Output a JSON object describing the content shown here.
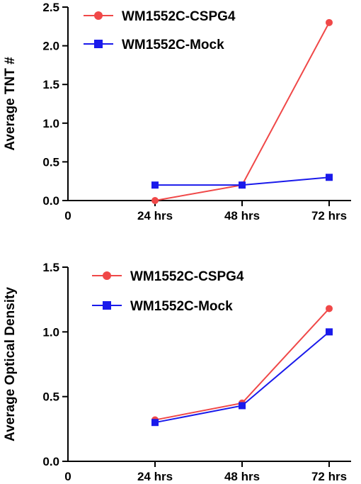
{
  "chart_data": [
    {
      "type": "line",
      "title": "",
      "xlabel": "",
      "ylabel": "Average TNT #",
      "x_categories": [
        "0",
        "24 hrs",
        "48 hrs",
        "72 hrs"
      ],
      "ylim": [
        0,
        2.5
      ],
      "yticks": [
        "0.0",
        "0.5",
        "1.0",
        "1.5",
        "2.0",
        "2.5"
      ],
      "ytick_values": [
        0,
        0.5,
        1,
        1.5,
        2,
        2.5
      ],
      "grid": false,
      "legend_position": "top-left",
      "series": [
        {
          "name": "WM1552C-CSPG4",
          "color": "#f04848",
          "marker": "circle",
          "x": [
            "24 hrs",
            "48 hrs",
            "72 hrs"
          ],
          "values": [
            0.0,
            0.2,
            2.3
          ]
        },
        {
          "name": "WM1552C-Mock",
          "color": "#1a1aeb",
          "marker": "square",
          "x": [
            "24 hrs",
            "48 hrs",
            "72 hrs"
          ],
          "values": [
            0.2,
            0.2,
            0.3
          ]
        }
      ]
    },
    {
      "type": "line",
      "title": "",
      "xlabel": "",
      "ylabel": "Average Optical Density",
      "x_categories": [
        "0",
        "24 hrs",
        "48 hrs",
        "72 hrs"
      ],
      "ylim": [
        0,
        1.5
      ],
      "yticks": [
        "0.0",
        "0.5",
        "1.0",
        "1.5"
      ],
      "ytick_values": [
        0,
        0.5,
        1,
        1.5
      ],
      "grid": false,
      "legend_position": "top-left",
      "series": [
        {
          "name": "WM1552C-CSPG4",
          "color": "#f04848",
          "marker": "circle",
          "x": [
            "24 hrs",
            "48 hrs",
            "72 hrs"
          ],
          "values": [
            0.32,
            0.45,
            1.18
          ]
        },
        {
          "name": "WM1552C-Mock",
          "color": "#1a1aeb",
          "marker": "square",
          "x": [
            "24 hrs",
            "48 hrs",
            "72 hrs"
          ],
          "values": [
            0.3,
            0.43,
            1.0
          ]
        }
      ]
    }
  ]
}
